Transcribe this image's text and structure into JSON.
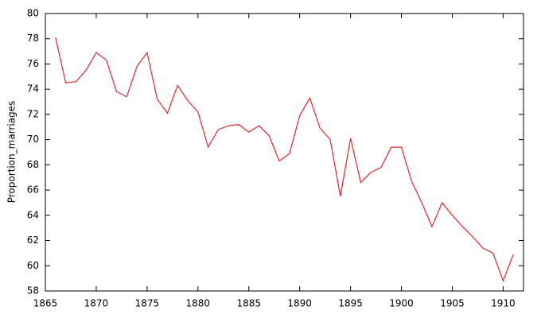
{
  "chart_data": {
    "type": "line",
    "y_label": "Proportion_marriages",
    "x": [
      1866,
      1867,
      1868,
      1869,
      1870,
      1871,
      1872,
      1873,
      1874,
      1875,
      1876,
      1877,
      1878,
      1879,
      1880,
      1881,
      1882,
      1883,
      1884,
      1885,
      1886,
      1887,
      1888,
      1889,
      1890,
      1891,
      1892,
      1893,
      1894,
      1895,
      1896,
      1897,
      1898,
      1899,
      1900,
      1901,
      1902,
      1903,
      1904,
      1905,
      1906,
      1907,
      1908,
      1909,
      1910,
      1911
    ],
    "series": [
      {
        "color": "#e8262a",
        "values": [
          78.1,
          74.5,
          74.6,
          75.5,
          76.9,
          76.3,
          73.8,
          73.4,
          75.8,
          76.9,
          73.2,
          72.1,
          74.3,
          73.1,
          72.2,
          69.4,
          70.8,
          71.1,
          71.2,
          70.6,
          71.1,
          70.3,
          68.3,
          68.9,
          71.9,
          73.3,
          70.9,
          70.0,
          65.5,
          70.1,
          66.6,
          67.4,
          67.8,
          69.4,
          69.4,
          66.7,
          65.0,
          63.1,
          65.0,
          64.0,
          63.1,
          62.3,
          61.4,
          61.0,
          58.8,
          60.9
        ]
      }
    ],
    "xlim": [
      1865,
      1912
    ],
    "xticks": [
      1865,
      1870,
      1875,
      1880,
      1885,
      1890,
      1895,
      1900,
      1905,
      1910
    ],
    "ylim": [
      58,
      80
    ],
    "yticks": [
      58,
      60,
      62,
      64,
      66,
      68,
      70,
      72,
      74,
      76,
      78,
      80
    ]
  }
}
